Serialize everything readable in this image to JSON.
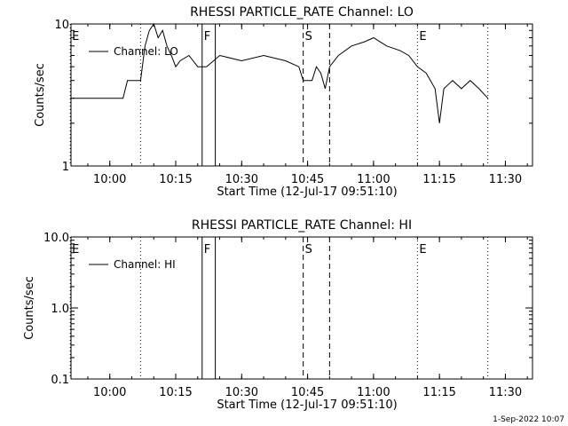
{
  "chart_data": [
    {
      "type": "line",
      "title": "RHESSI PARTICLE_RATE Channel: LO",
      "xlabel": "Start Time (12-Jul-17 09:51:10)",
      "ylabel": "Counts/sec",
      "yscale": "log",
      "ylim": [
        1,
        10
      ],
      "y_tick_labels": [
        "1",
        "10"
      ],
      "xlim_minutes_after_0951": [
        0,
        105
      ],
      "x_tick_labels": [
        "10:00",
        "10:15",
        "10:30",
        "10:45",
        "11:00",
        "11:15",
        "11:30"
      ],
      "legend": {
        "entries": [
          "Channel: LO"
        ],
        "placement": "top-left"
      },
      "markers": [
        {
          "label": "E",
          "time": "09:51",
          "style": "dotted"
        },
        {
          "label": "",
          "time": "10:07",
          "style": "dotted"
        },
        {
          "label": "F",
          "time": "10:21",
          "style": "solid"
        },
        {
          "label": "",
          "time": "10:24",
          "style": "solid"
        },
        {
          "label": "S",
          "time": "10:44",
          "style": "dashed"
        },
        {
          "label": "",
          "time": "10:50",
          "style": "dashed"
        },
        {
          "label": "E",
          "time": "11:10",
          "style": "dotted"
        },
        {
          "label": "",
          "time": "11:26",
          "style": "dotted"
        }
      ],
      "series": [
        {
          "name": "Channel: LO",
          "x": [
            "09:51",
            "10:03",
            "10:04",
            "10:06",
            "10:07",
            "10:08",
            "10:09",
            "10:10",
            "10:11",
            "10:12",
            "10:13",
            "10:14",
            "10:15",
            "10:16",
            "10:18",
            "10:20",
            "10:22",
            "10:25",
            "10:30",
            "10:35",
            "10:40",
            "10:43",
            "10:44",
            "10:46",
            "10:47",
            "10:48",
            "10:49",
            "10:50",
            "10:52",
            "10:55",
            "10:58",
            "11:00",
            "11:03",
            "11:06",
            "11:08",
            "11:10",
            "11:12",
            "11:14",
            "11:15",
            "11:16",
            "11:18",
            "11:20",
            "11:22",
            "11:24",
            "11:26"
          ],
          "y": [
            3,
            3,
            4,
            4,
            4,
            7,
            9,
            10,
            8,
            9,
            7,
            6,
            5,
            5.5,
            6,
            5,
            5,
            6,
            5.5,
            6,
            5.5,
            5,
            4,
            4,
            5,
            4.5,
            3.5,
            5,
            6,
            7,
            7.5,
            8,
            7,
            6.5,
            6,
            5,
            4.5,
            3.5,
            2,
            3.5,
            4,
            3.5,
            4,
            3.5,
            3
          ]
        }
      ]
    },
    {
      "type": "line",
      "title": "RHESSI PARTICLE_RATE Channel: HI",
      "xlabel": "Start Time (12-Jul-17 09:51:10)",
      "ylabel": "Counts/sec",
      "yscale": "log",
      "ylim": [
        0.1,
        10
      ],
      "y_tick_labels": [
        "0.1",
        "1.0",
        "10.0"
      ],
      "xlim_minutes_after_0951": [
        0,
        105
      ],
      "x_tick_labels": [
        "10:00",
        "10:15",
        "10:30",
        "10:45",
        "11:00",
        "11:15",
        "11:30"
      ],
      "legend": {
        "entries": [
          "Channel: HI"
        ],
        "placement": "top-left"
      },
      "markers": [
        {
          "label": "E",
          "time": "09:51",
          "style": "dotted"
        },
        {
          "label": "",
          "time": "10:07",
          "style": "dotted"
        },
        {
          "label": "F",
          "time": "10:21",
          "style": "solid"
        },
        {
          "label": "",
          "time": "10:24",
          "style": "solid"
        },
        {
          "label": "S",
          "time": "10:44",
          "style": "dashed"
        },
        {
          "label": "",
          "time": "10:50",
          "style": "dashed"
        },
        {
          "label": "E",
          "time": "11:10",
          "style": "dotted"
        },
        {
          "label": "",
          "time": "11:26",
          "style": "dotted"
        }
      ],
      "series": [
        {
          "name": "Channel: HI",
          "x": [],
          "y": []
        }
      ]
    }
  ],
  "footer": {
    "timestamp": "1-Sep-2022 10:07"
  }
}
